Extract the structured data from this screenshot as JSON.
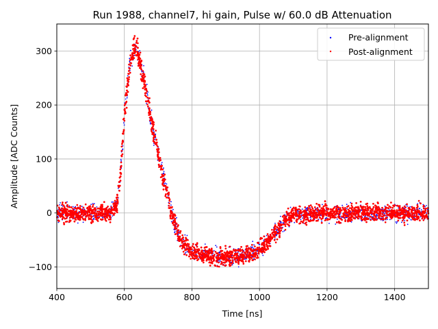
{
  "chart_data": {
    "type": "scatter",
    "title": "Run 1988, channel7, hi gain, Pulse w/ 60.0 dB Attenuation",
    "xlabel": "Time [ns]",
    "ylabel": "Amplitude [ADC Counts]",
    "xlim": [
      400,
      1500
    ],
    "ylim": [
      -140,
      350
    ],
    "xticks": [
      400,
      600,
      800,
      1000,
      1200,
      1400
    ],
    "xtick_labels": [
      "400",
      "600",
      "800",
      "1000",
      "1200",
      "1400"
    ],
    "yticks": [
      -100,
      0,
      100,
      200,
      300
    ],
    "ytick_labels": [
      "−100",
      "0",
      "100",
      "200",
      "300"
    ],
    "grid": true,
    "legend_position": "top-right",
    "series": [
      {
        "name": "Pre-alignment",
        "color": "#0000ff",
        "marker": "dot",
        "envelope": {
          "x": [
            400,
            560,
            580,
            590,
            600,
            610,
            620,
            630,
            635,
            640,
            650,
            660,
            680,
            700,
            720,
            740,
            760,
            780,
            800,
            850,
            900,
            950,
            1000,
            1030,
            1060,
            1080,
            1100,
            1150,
            1200,
            1300,
            1400,
            1500
          ],
          "y": [
            0,
            0,
            20,
            80,
            180,
            245,
            285,
            300,
            300,
            295,
            270,
            240,
            170,
            110,
            50,
            0,
            -40,
            -60,
            -72,
            -80,
            -82,
            -80,
            -68,
            -50,
            -25,
            -10,
            -4,
            -2,
            0,
            0,
            0,
            0
          ],
          "spread": [
            15,
            15,
            15,
            18,
            22,
            20,
            18,
            18,
            18,
            18,
            18,
            18,
            18,
            18,
            18,
            18,
            16,
            15,
            15,
            15,
            15,
            15,
            15,
            15,
            15,
            15,
            15,
            15,
            15,
            15,
            15,
            15
          ]
        }
      },
      {
        "name": "Post-alignment",
        "color": "#ff0000",
        "marker": "dot",
        "envelope": {
          "x": [
            400,
            560,
            580,
            590,
            600,
            610,
            620,
            630,
            635,
            640,
            650,
            660,
            680,
            700,
            720,
            740,
            760,
            780,
            800,
            850,
            900,
            950,
            1000,
            1030,
            1060,
            1080,
            1100,
            1150,
            1200,
            1300,
            1400,
            1500
          ],
          "y": [
            0,
            0,
            20,
            80,
            180,
            245,
            285,
            300,
            300,
            295,
            270,
            240,
            170,
            110,
            50,
            0,
            -40,
            -60,
            -72,
            -80,
            -82,
            -80,
            -68,
            -50,
            -25,
            -10,
            -4,
            -2,
            0,
            0,
            0,
            0
          ],
          "spread": [
            14,
            14,
            14,
            17,
            21,
            19,
            17,
            17,
            17,
            17,
            17,
            17,
            17,
            17,
            17,
            17,
            15,
            14,
            14,
            14,
            14,
            14,
            14,
            14,
            14,
            14,
            14,
            14,
            14,
            14,
            14,
            14
          ]
        }
      }
    ]
  }
}
